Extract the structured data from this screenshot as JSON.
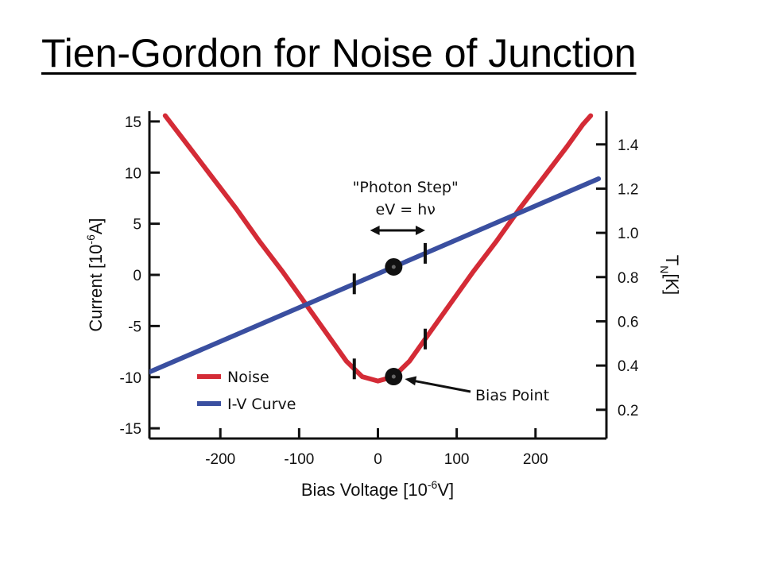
{
  "slide": {
    "title": "Tien-Gordon for Noise of Junction"
  },
  "chart_data": {
    "type": "line",
    "xlabel": {
      "text": "Bias Voltage [10",
      "sup": "-6",
      "unit": "V]"
    },
    "ylabel_left": {
      "text": "Current [10",
      "sup": "-6",
      "unit": "A]"
    },
    "ylabel_right": {
      "text": "T",
      "sub": "N",
      "unit": "[K]"
    },
    "x_ticks": [
      -200,
      -100,
      0,
      100,
      200
    ],
    "y_left_ticks": [
      15,
      10,
      5,
      0,
      -5,
      -10,
      -15
    ],
    "y_right_ticks": [
      "1.4",
      "1.2",
      "1.0",
      "0.8",
      "0.6",
      "0.4",
      "0.2"
    ],
    "xlim": [
      -290,
      290
    ],
    "ylim_left": [
      -16,
      16
    ],
    "ylim_right": [
      0.07,
      1.55
    ],
    "series": [
      {
        "name": "Noise",
        "axis": "right",
        "color": "#d42b36",
        "x": [
          -270,
          -240,
          -210,
          -180,
          -150,
          -120,
          -90,
          -60,
          -40,
          -20,
          0,
          20,
          40,
          60,
          90,
          120,
          150,
          180,
          210,
          240,
          260,
          270
        ],
        "y": [
          1.53,
          1.39,
          1.25,
          1.11,
          0.96,
          0.82,
          0.67,
          0.52,
          0.42,
          0.35,
          0.33,
          0.35,
          0.42,
          0.52,
          0.67,
          0.82,
          0.96,
          1.11,
          1.25,
          1.39,
          1.49,
          1.53
        ]
      },
      {
        "name": "I-V Curve",
        "axis": "left",
        "color": "#3a4fa0",
        "x": [
          -290,
          280
        ],
        "y": [
          -9.5,
          9.4
        ]
      }
    ],
    "annotations": {
      "photon_step_label": "\"Photon Step\"",
      "photon_step_formula": "eV = hν",
      "bias_point_label": "Bias Point",
      "photon_step_markers_x": [
        -30,
        60
      ],
      "bias_point_x": 20
    },
    "legend": {
      "position": "bottom-left",
      "entries": [
        "Noise",
        "I-V Curve"
      ]
    }
  }
}
